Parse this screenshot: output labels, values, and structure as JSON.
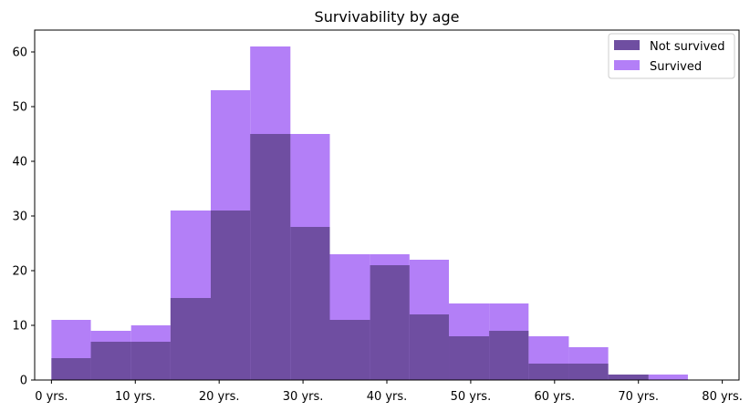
{
  "chart_data": {
    "type": "histogram",
    "title": "Survivability by age",
    "xlabel": "",
    "ylabel": "",
    "xlim": [
      -2,
      82
    ],
    "ylim": [
      0,
      64
    ],
    "x_ticks": [
      0,
      10,
      20,
      30,
      40,
      50,
      60,
      70,
      80
    ],
    "x_tick_labels": [
      "0 yrs.",
      "10 yrs.",
      "20 yrs.",
      "30 yrs.",
      "40 yrs.",
      "50 yrs.",
      "60 yrs.",
      "70 yrs.",
      "80 yrs."
    ],
    "y_ticks": [
      0,
      10,
      20,
      30,
      40,
      50,
      60
    ],
    "y_tick_labels": [
      "0",
      "10",
      "20",
      "30",
      "40",
      "50",
      "60"
    ],
    "grid": false,
    "legend_position": "top-right",
    "series": [
      {
        "name": "Not survived",
        "color": "#6f4ea1",
        "bins": [
          {
            "x0": 0.0,
            "x1": 4.7,
            "y": 4
          },
          {
            "x0": 4.7,
            "x1": 9.5,
            "y": 7
          },
          {
            "x0": 9.5,
            "x1": 14.2,
            "y": 7
          },
          {
            "x0": 14.2,
            "x1": 19.0,
            "y": 15
          },
          {
            "x0": 19.0,
            "x1": 23.7,
            "y": 31
          },
          {
            "x0": 23.7,
            "x1": 28.5,
            "y": 45
          },
          {
            "x0": 28.5,
            "x1": 33.2,
            "y": 28
          },
          {
            "x0": 33.2,
            "x1": 38.0,
            "y": 11
          },
          {
            "x0": 38.0,
            "x1": 42.7,
            "y": 21
          },
          {
            "x0": 42.7,
            "x1": 47.4,
            "y": 12
          },
          {
            "x0": 47.4,
            "x1": 52.2,
            "y": 8
          },
          {
            "x0": 52.2,
            "x1": 56.9,
            "y": 9
          },
          {
            "x0": 56.9,
            "x1": 61.7,
            "y": 3
          },
          {
            "x0": 61.7,
            "x1": 66.4,
            "y": 3
          },
          {
            "x0": 66.4,
            "x1": 71.2,
            "y": 1
          }
        ]
      },
      {
        "name": "Survived",
        "color": "#b37ff7",
        "bins": [
          {
            "x0": 0.0,
            "x1": 4.7,
            "y": 11
          },
          {
            "x0": 4.7,
            "x1": 9.5,
            "y": 9
          },
          {
            "x0": 9.5,
            "x1": 14.2,
            "y": 10
          },
          {
            "x0": 14.2,
            "x1": 19.0,
            "y": 31
          },
          {
            "x0": 19.0,
            "x1": 23.7,
            "y": 53
          },
          {
            "x0": 23.7,
            "x1": 28.5,
            "y": 61
          },
          {
            "x0": 28.5,
            "x1": 33.2,
            "y": 45
          },
          {
            "x0": 33.2,
            "x1": 38.0,
            "y": 23
          },
          {
            "x0": 38.0,
            "x1": 42.7,
            "y": 23
          },
          {
            "x0": 42.7,
            "x1": 47.4,
            "y": 22
          },
          {
            "x0": 47.4,
            "x1": 52.2,
            "y": 14
          },
          {
            "x0": 52.2,
            "x1": 56.9,
            "y": 14
          },
          {
            "x0": 56.9,
            "x1": 61.7,
            "y": 8
          },
          {
            "x0": 61.7,
            "x1": 66.4,
            "y": 6
          },
          {
            "x0": 66.4,
            "x1": 71.2,
            "y": 1
          },
          {
            "x0": 71.2,
            "x1": 75.9,
            "y": 1
          }
        ]
      }
    ]
  }
}
